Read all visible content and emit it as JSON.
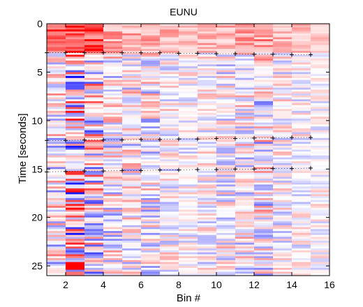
{
  "chart_data": {
    "type": "heatmap",
    "title": "EUNU",
    "xlabel": "Bin #",
    "ylabel": "Time [seconds]",
    "xlim": [
      1,
      16
    ],
    "ylim": [
      0,
      26
    ],
    "y_axis_direction": "downward",
    "x_ticks": [
      2,
      4,
      6,
      8,
      10,
      12,
      14,
      16
    ],
    "y_ticks": [
      0,
      5,
      10,
      15,
      20,
      25
    ],
    "colormap": "blue-white-red diverging",
    "colors": {
      "positive": "#ff0000",
      "negative": "#0000ff",
      "zero": "#ffffff"
    },
    "grid": false,
    "marker_rows": [
      {
        "name": "",
        "x": [
          1,
          2,
          3,
          4,
          5,
          6,
          7,
          8,
          9,
          10,
          11,
          12,
          13,
          14,
          15
        ],
        "y": [
          3.0,
          3.0,
          3.0,
          3.0,
          3.0,
          3.0,
          3.0,
          3.05,
          3.05,
          3.1,
          3.1,
          3.15,
          3.15,
          3.2,
          3.2
        ]
      },
      {
        "name": "",
        "x": [
          1,
          2,
          3,
          4,
          5,
          6,
          7,
          8,
          9,
          10,
          11,
          12,
          13,
          14,
          15
        ],
        "y": [
          12.05,
          12.05,
          12.0,
          12.0,
          12.0,
          11.95,
          11.95,
          11.9,
          11.9,
          11.85,
          11.85,
          11.8,
          11.8,
          11.75,
          11.75
        ]
      },
      {
        "name": "",
        "x": [
          1,
          2,
          3,
          4,
          5,
          6,
          7,
          8,
          9,
          10,
          11,
          12,
          13,
          14,
          15
        ],
        "y": [
          15.3,
          15.25,
          15.2,
          15.2,
          15.15,
          15.15,
          15.1,
          15.1,
          15.05,
          15.05,
          15.0,
          15.0,
          14.95,
          14.95,
          14.9
        ]
      }
    ]
  }
}
